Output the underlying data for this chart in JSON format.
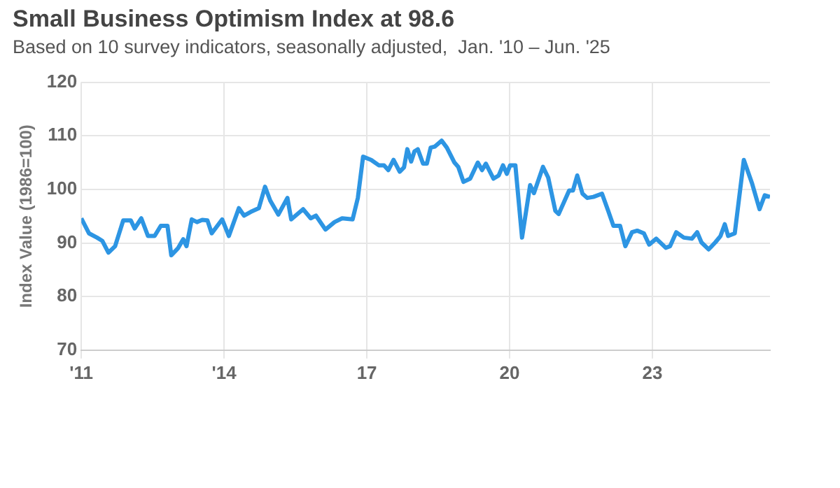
{
  "chart_data": {
    "type": "line",
    "title": "Small Business Optimism Index at 98.6",
    "subtitle": "Based on 10 survey indicators, seasonally adjusted,  Jan. '10 – Jun. '25",
    "ylabel": "Index Value (1986=100)",
    "x": [
      2011.0,
      2011.16,
      2011.33,
      2011.44,
      2011.57,
      2011.71,
      2011.88,
      2012.04,
      2012.12,
      2012.26,
      2012.4,
      2012.54,
      2012.67,
      2012.81,
      2012.89,
      2013.03,
      2013.14,
      2013.21,
      2013.32,
      2013.43,
      2013.54,
      2013.65,
      2013.74,
      2013.96,
      2014.1,
      2014.31,
      2014.42,
      2014.56,
      2014.73,
      2014.86,
      2014.97,
      2015.14,
      2015.33,
      2015.41,
      2015.66,
      2015.82,
      2015.93,
      2016.13,
      2016.32,
      2016.48,
      2016.7,
      2016.81,
      2016.92,
      2017.09,
      2017.25,
      2017.36,
      2017.45,
      2017.56,
      2017.69,
      2017.78,
      2017.85,
      2017.93,
      2018.0,
      2018.07,
      2018.18,
      2018.26,
      2018.34,
      2018.43,
      2018.57,
      2018.68,
      2018.84,
      2018.92,
      2019.03,
      2019.17,
      2019.33,
      2019.42,
      2019.5,
      2019.66,
      2019.77,
      2019.86,
      2019.94,
      2020.01,
      2020.12,
      2020.26,
      2020.43,
      2020.51,
      2020.7,
      2020.81,
      2020.96,
      2021.03,
      2021.25,
      2021.33,
      2021.42,
      2021.53,
      2021.63,
      2021.76,
      2021.94,
      2022.07,
      2022.18,
      2022.32,
      2022.43,
      2022.57,
      2022.68,
      2022.82,
      2022.93,
      2023.08,
      2023.28,
      2023.37,
      2023.5,
      2023.66,
      2023.83,
      2023.94,
      2024.03,
      2024.18,
      2024.32,
      2024.43,
      2024.52,
      2024.59,
      2024.73,
      2024.92,
      2025.09,
      2025.25,
      2025.36,
      2025.47
    ],
    "series": [
      {
        "color": "#2d95e3",
        "values": [
          94.6,
          91.8,
          91.0,
          90.4,
          88.2,
          89.4,
          94.2,
          94.2,
          92.7,
          94.6,
          91.3,
          91.3,
          93.2,
          93.2,
          87.7,
          89.0,
          90.7,
          89.4,
          94.4,
          93.9,
          94.3,
          94.2,
          91.8,
          94.4,
          91.3,
          96.5,
          95.1,
          95.8,
          96.5,
          100.5,
          97.9,
          95.3,
          98.4,
          94.4,
          96.3,
          94.6,
          95.1,
          92.5,
          93.9,
          94.6,
          94.4,
          98.4,
          106.1,
          105.5,
          104.5,
          104.5,
          103.6,
          105.5,
          103.3,
          104.1,
          107.5,
          105.2,
          107.1,
          107.5,
          104.8,
          104.8,
          107.8,
          108.0,
          109.1,
          107.8,
          105.0,
          104.2,
          101.4,
          102.0,
          105.0,
          103.6,
          104.8,
          102.0,
          102.6,
          104.5,
          102.9,
          104.5,
          104.5,
          91.0,
          100.8,
          99.3,
          104.2,
          102.2,
          96.0,
          95.4,
          99.8,
          99.8,
          102.6,
          99.2,
          98.4,
          98.6,
          99.2,
          96.0,
          93.2,
          93.2,
          89.4,
          92.0,
          92.3,
          91.8,
          89.7,
          90.8,
          89.1,
          89.4,
          92.0,
          91.0,
          90.8,
          92.0,
          90.1,
          88.8,
          90.1,
          91.3,
          93.5,
          91.3,
          91.8,
          105.5,
          101.2,
          96.3,
          98.9,
          98.6
        ]
      }
    ],
    "xlim": [
      2011,
      2025.47
    ],
    "xticks": [
      {
        "value": 2011,
        "label": "'11"
      },
      {
        "value": 2014,
        "label": "'14"
      },
      {
        "value": 2017,
        "label": "17"
      },
      {
        "value": 2020,
        "label": "20"
      },
      {
        "value": 2023,
        "label": "23"
      }
    ],
    "ylim": [
      70,
      120
    ],
    "yticks": [
      70,
      80,
      90,
      100,
      110,
      120
    ],
    "grid": true,
    "marker": "none",
    "line_style": "solid"
  }
}
